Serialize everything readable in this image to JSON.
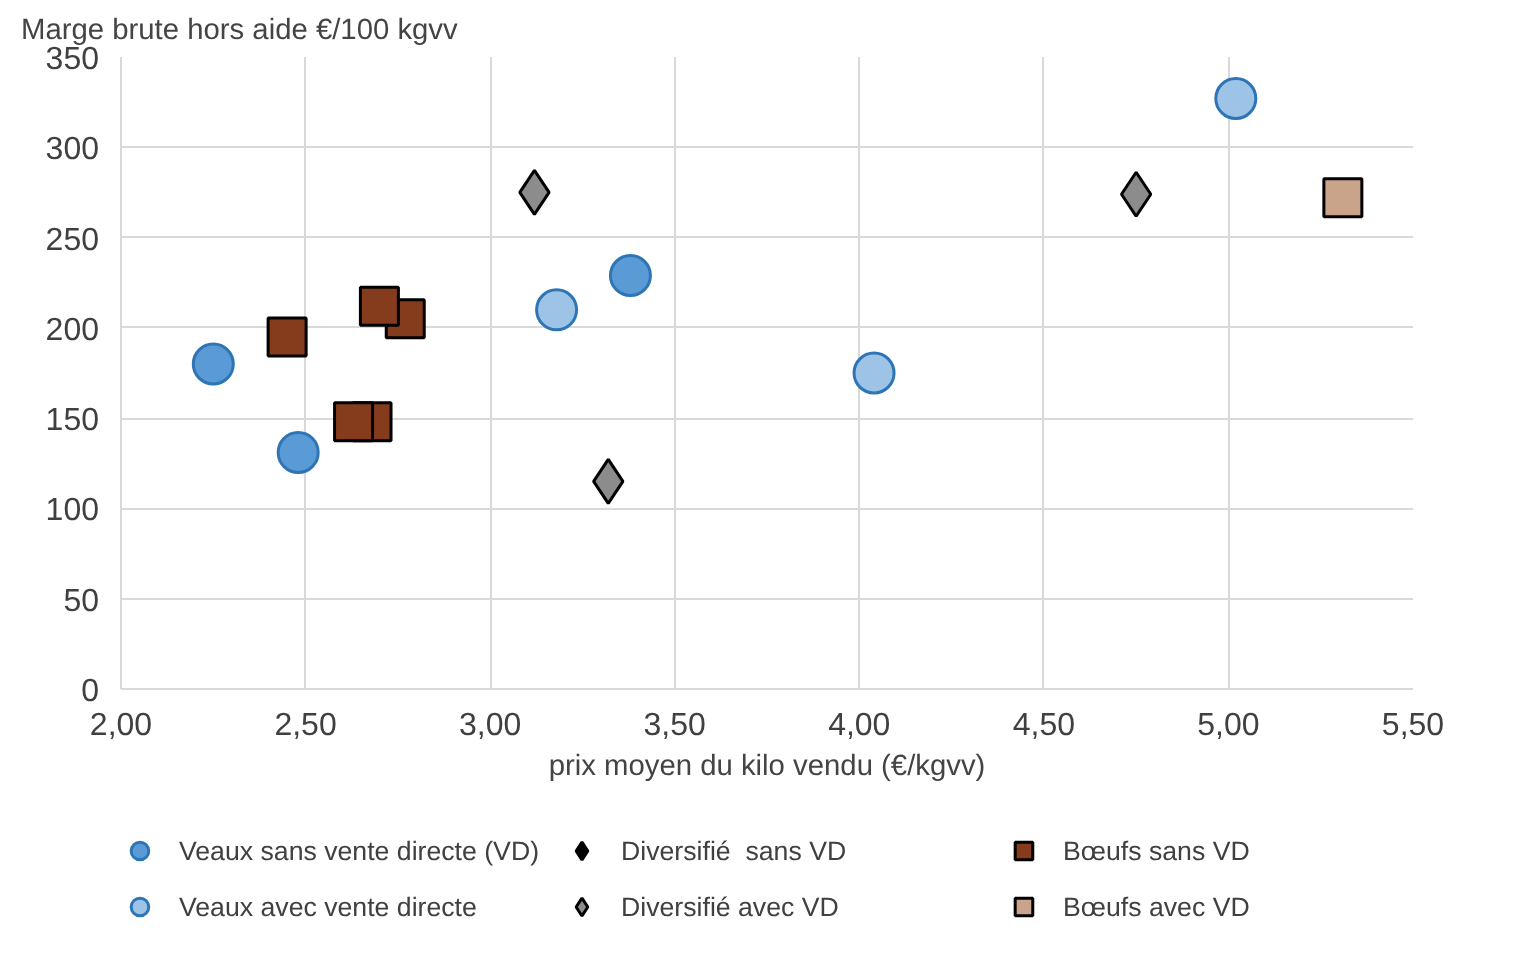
{
  "chart_data": {
    "type": "scatter",
    "ylabel": "Marge brute hors aide €/100 kgvv",
    "xlabel": "prix moyen du kilo vendu (€/kgvv)",
    "xlim": [
      2.0,
      5.5
    ],
    "ylim": [
      0,
      350
    ],
    "xticks": [
      {
        "value": 2.0,
        "label": "2,00"
      },
      {
        "value": 2.5,
        "label": "2,50"
      },
      {
        "value": 3.0,
        "label": "3,00"
      },
      {
        "value": 3.5,
        "label": "3,50"
      },
      {
        "value": 4.0,
        "label": "4,00"
      },
      {
        "value": 4.5,
        "label": "4,50"
      },
      {
        "value": 5.0,
        "label": "5,00"
      },
      {
        "value": 5.5,
        "label": "5,50"
      }
    ],
    "yticks": [
      0,
      50,
      100,
      150,
      200,
      250,
      300,
      350
    ],
    "grid": true,
    "legend": "bottom",
    "series": [
      {
        "name": "Veaux sans vente directe (VD)",
        "color": "#5b9bd5",
        "marker": "circle",
        "x": [
          2.25,
          2.48,
          3.38
        ],
        "values": [
          180,
          131,
          229
        ]
      },
      {
        "name": "Veaux avec vente directe",
        "color": "#9dc3e6",
        "marker": "circle",
        "x": [
          3.18,
          4.04,
          5.02
        ],
        "values": [
          210,
          175,
          327
        ]
      },
      {
        "name": "Diversifié  sans VD",
        "color": "#000000",
        "marker": "diamond"
      },
      {
        "name": "Diversifié avec VD",
        "color": "#8c8c8c",
        "marker": "diamond",
        "x": [
          3.12,
          3.32,
          4.75
        ],
        "values": [
          275,
          115,
          274
        ]
      },
      {
        "name": "Bœufs sans VD",
        "color": "#843c1c",
        "marker": "square",
        "x": [
          2.45,
          2.77,
          2.7,
          2.68,
          2.63
        ],
        "values": [
          195,
          205,
          212,
          148,
          148
        ]
      },
      {
        "name": "Bœufs avec VD",
        "color": "#c9a38a",
        "marker": "square",
        "x": [
          5.31
        ],
        "values": [
          272
        ]
      }
    ]
  }
}
